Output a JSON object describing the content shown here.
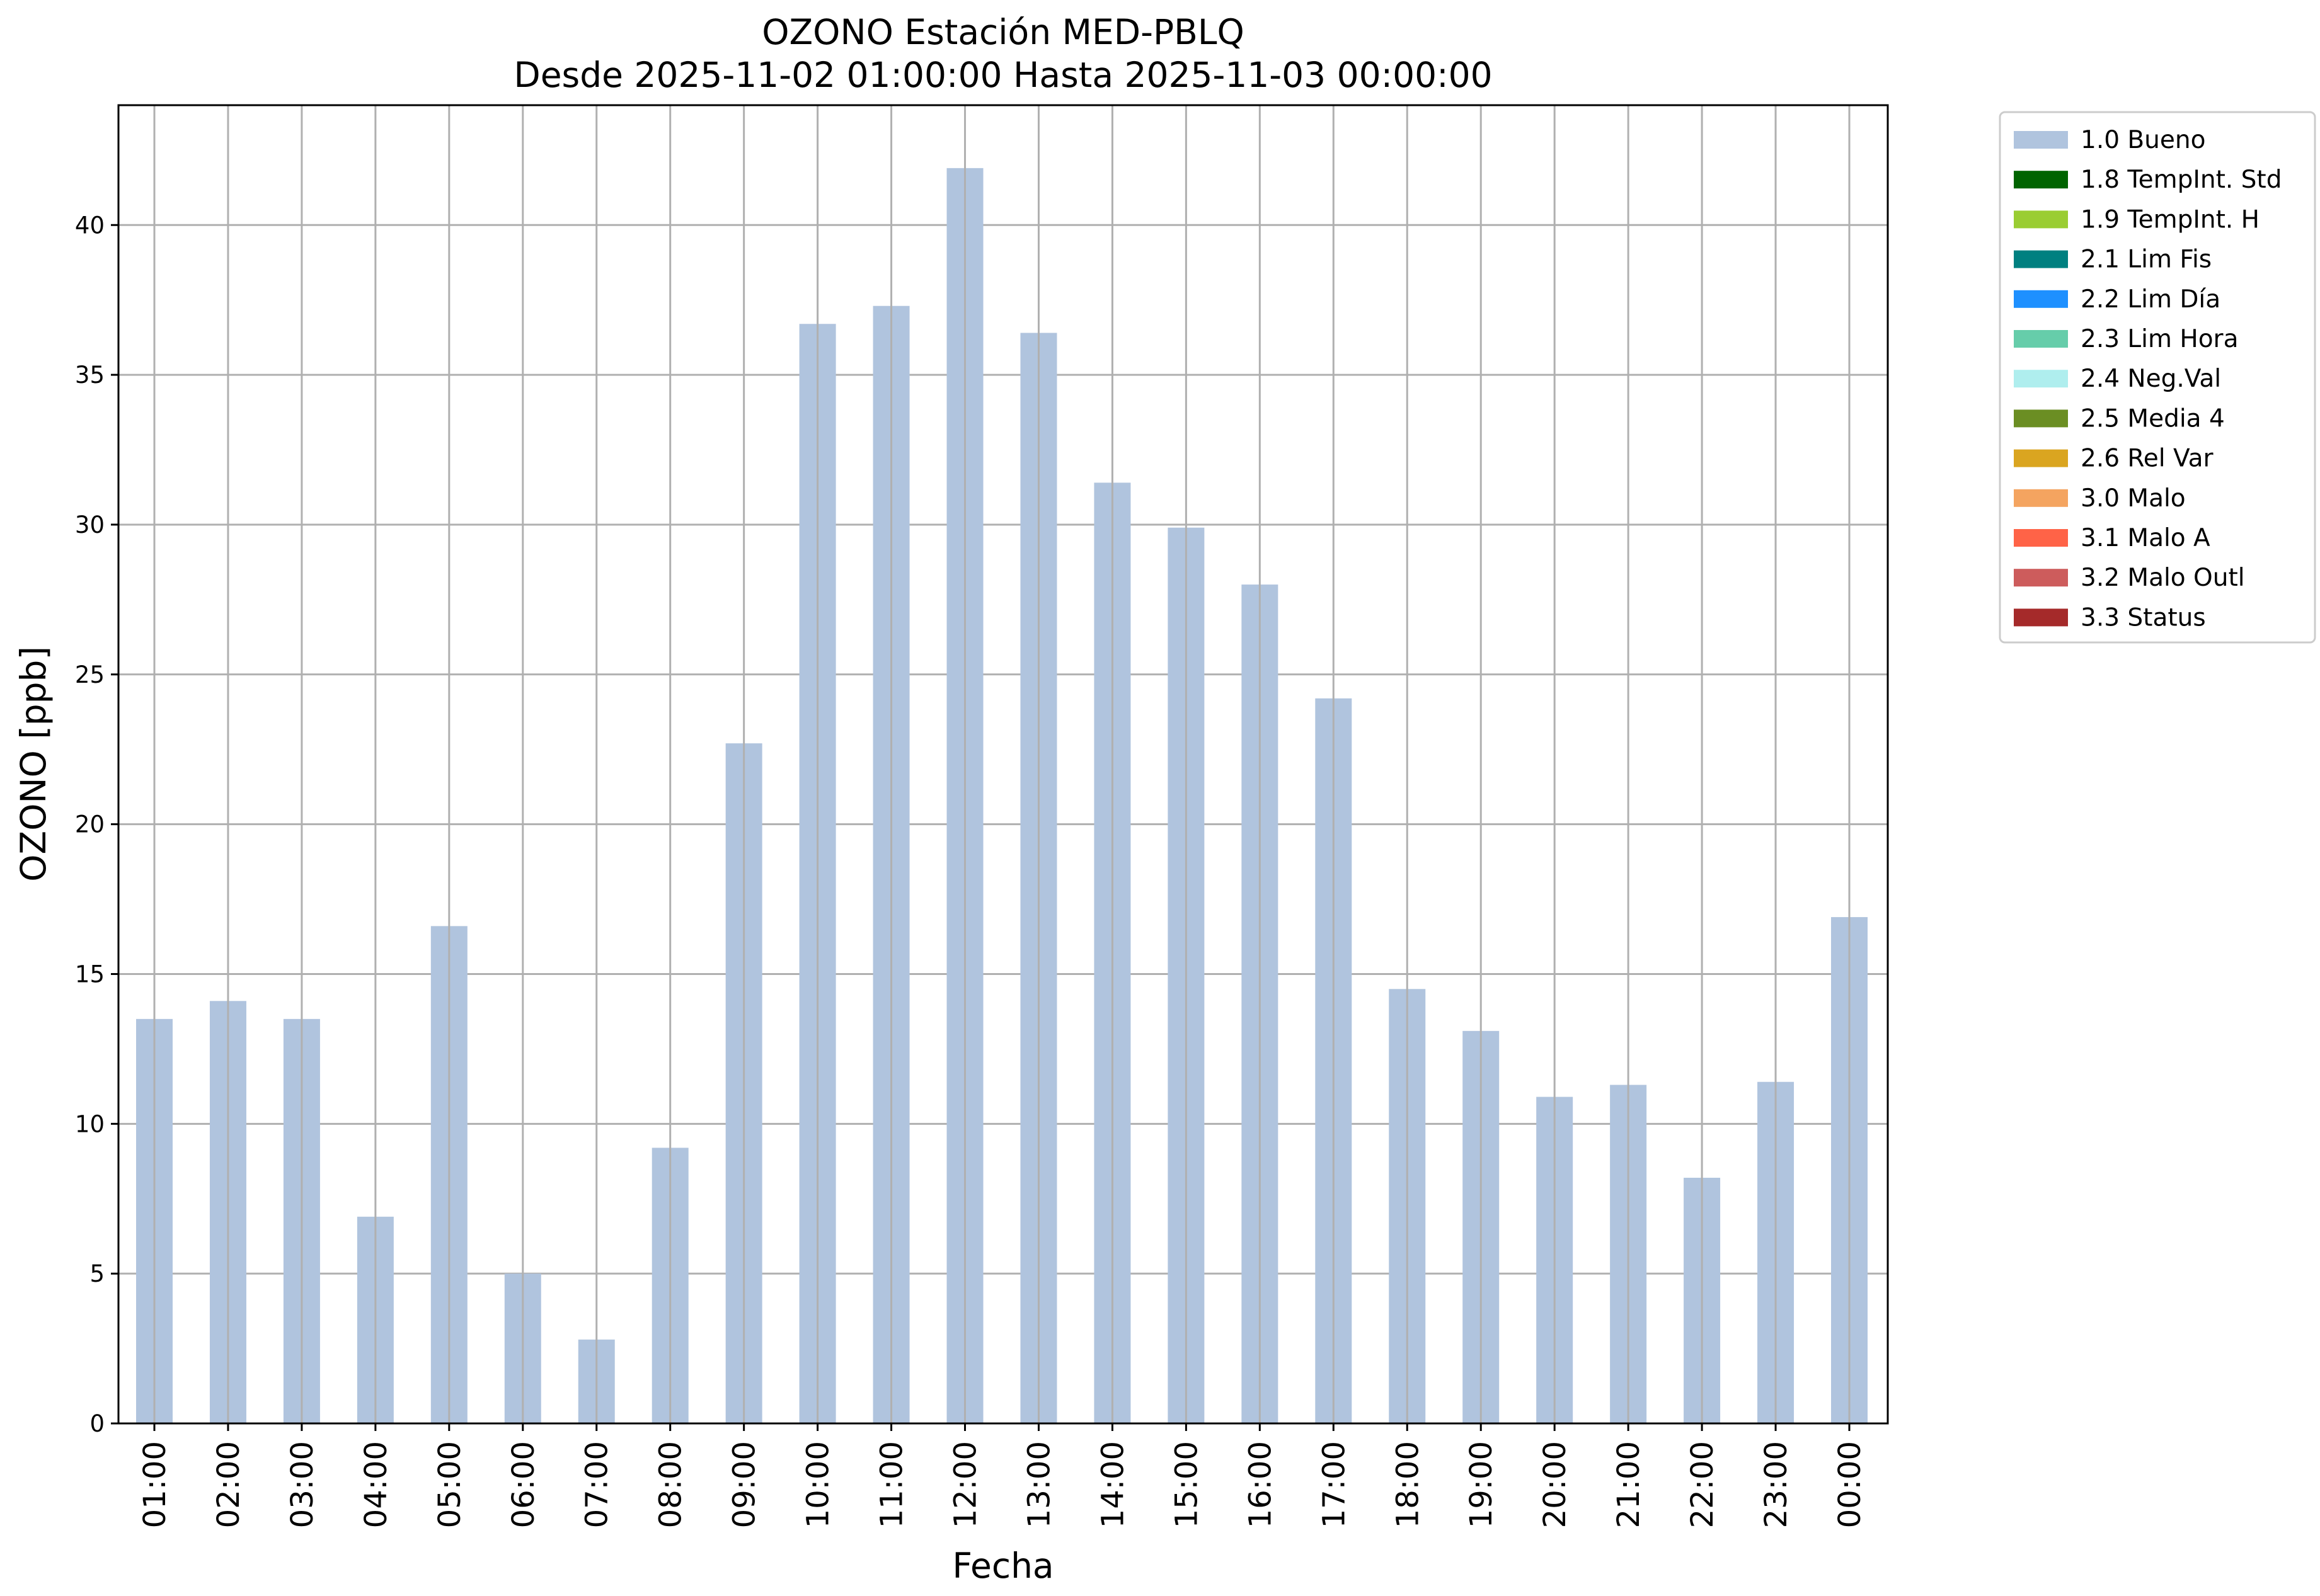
{
  "chart_data": {
    "type": "bar",
    "title": "OZONO Estación MED-PBLQ",
    "subtitle": "Desde 2025-11-02 01:00:00 Hasta 2025-11-03 00:00:00",
    "xlabel": "Fecha",
    "ylabel": "OZONO [ppb]",
    "ylim": [
      0,
      44
    ],
    "yticks": [
      0,
      5,
      10,
      15,
      20,
      25,
      30,
      35,
      40
    ],
    "grid": true,
    "legend_position": "outside-top-right",
    "categories": [
      "01:00",
      "02:00",
      "03:00",
      "04:00",
      "05:00",
      "06:00",
      "07:00",
      "08:00",
      "09:00",
      "10:00",
      "11:00",
      "12:00",
      "13:00",
      "14:00",
      "15:00",
      "16:00",
      "17:00",
      "18:00",
      "19:00",
      "20:00",
      "21:00",
      "22:00",
      "23:00",
      "00:00"
    ],
    "series": [
      {
        "name": "1.0 Bueno",
        "color": "#b0c4de",
        "values": [
          13.5,
          14.1,
          13.5,
          6.9,
          16.6,
          5.0,
          2.8,
          9.2,
          22.7,
          36.7,
          37.3,
          41.9,
          36.4,
          31.4,
          29.9,
          28.0,
          24.2,
          14.5,
          13.1,
          10.9,
          11.3,
          8.2,
          11.4,
          16.9
        ]
      }
    ],
    "legend": [
      {
        "label": "1.0 Bueno",
        "color": "#b0c4de"
      },
      {
        "label": "1.8 TempInt. Std",
        "color": "#006400"
      },
      {
        "label": "1.9 TempInt. H",
        "color": "#9acd32"
      },
      {
        "label": "2.1 Lim Fis",
        "color": "#008080"
      },
      {
        "label": "2.2 Lim Día",
        "color": "#1e90ff"
      },
      {
        "label": "2.3 Lim Hora",
        "color": "#66cdaa"
      },
      {
        "label": "2.4 Neg.Val",
        "color": "#afeeee"
      },
      {
        "label": "2.5 Media 4",
        "color": "#6b8e23"
      },
      {
        "label": "2.6 Rel Var",
        "color": "#daa520"
      },
      {
        "label": "3.0 Malo",
        "color": "#f4a460"
      },
      {
        "label": "3.1 Malo A",
        "color": "#ff6347"
      },
      {
        "label": "3.2 Malo Outl",
        "color": "#cd5c5c"
      },
      {
        "label": "3.3 Status",
        "color": "#a52a2a"
      }
    ]
  }
}
